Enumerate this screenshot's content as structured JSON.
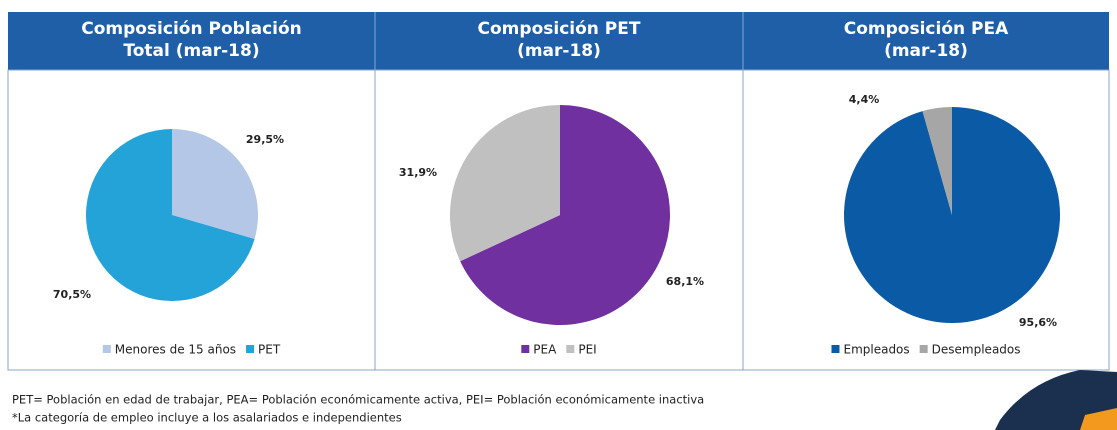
{
  "chart_data": [
    {
      "type": "pie",
      "title": [
        "Composición Población",
        "Total (mar-18)"
      ],
      "categories": [
        "Menores de 15 años",
        "PET"
      ],
      "values": [
        29.5,
        70.5
      ],
      "value_labels": [
        "29,5%",
        "70,5%"
      ],
      "colors": [
        "#b4c7e7",
        "#24a3d9"
      ]
    },
    {
      "type": "pie",
      "title": [
        "Composición PET",
        "(mar-18)"
      ],
      "categories": [
        "PEA",
        "PEI"
      ],
      "values": [
        68.1,
        31.9
      ],
      "value_labels": [
        "68,1%",
        "31,9%"
      ],
      "colors": [
        "#7030a0",
        "#c0c0c0"
      ]
    },
    {
      "type": "pie",
      "title": [
        "Composición PEA",
        "(mar-18)"
      ],
      "categories": [
        "Empleados",
        "Desempleados"
      ],
      "values": [
        95.6,
        4.4
      ],
      "value_labels": [
        "95,6%",
        "4,4%"
      ],
      "colors": [
        "#0b5aa5",
        "#a6a6a6"
      ]
    }
  ],
  "notes": [
    "PET= Población en edad de trabajar, PEA= Población económicamente activa, PEI= Población económicamente inactiva",
    "*La categoría de empleo incluye a los asalariados e independientes"
  ]
}
